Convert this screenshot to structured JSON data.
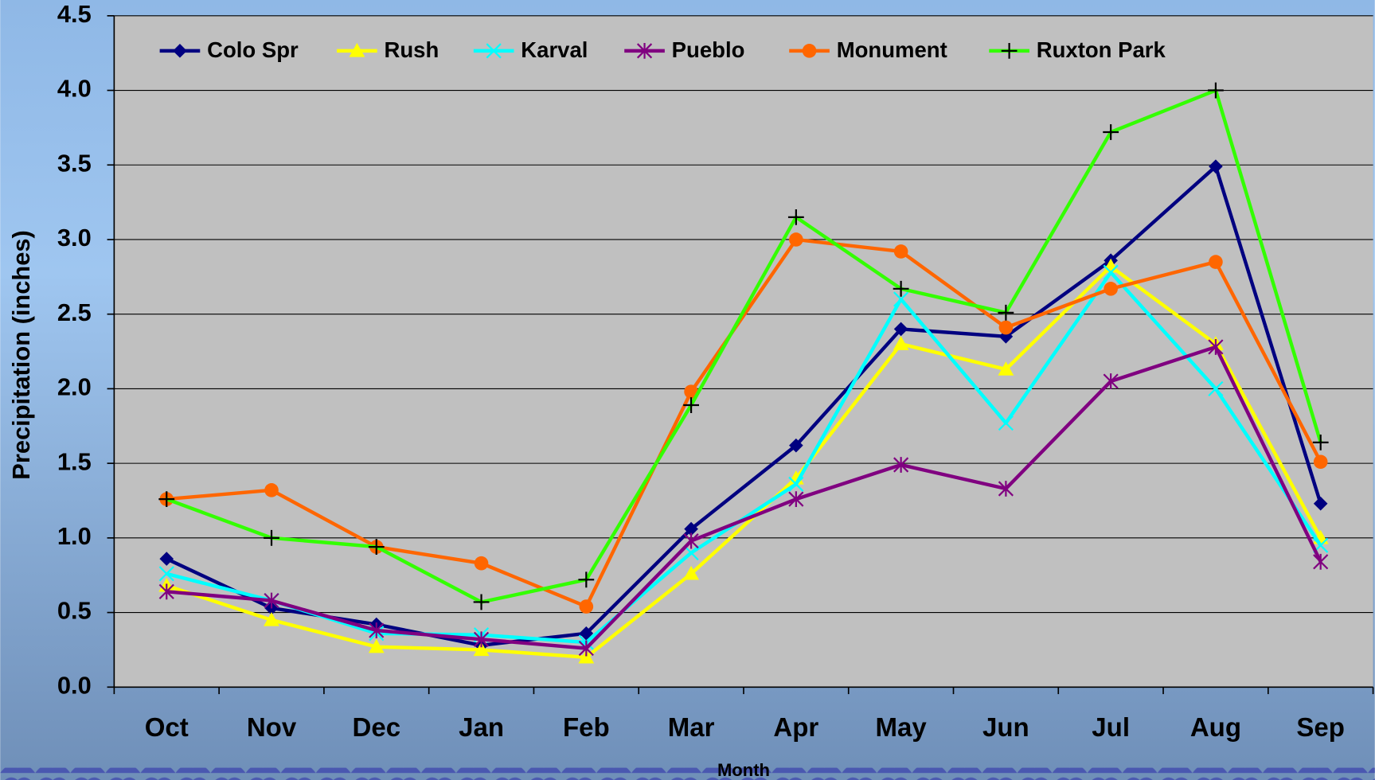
{
  "chart_data": {
    "type": "line",
    "x_label": "Month",
    "y_label": "Precipitation (inches)",
    "categories": [
      "Oct",
      "Nov",
      "Dec",
      "Jan",
      "Feb",
      "Mar",
      "Apr",
      "May",
      "Jun",
      "Jul",
      "Aug",
      "Sep"
    ],
    "ylim": [
      0,
      4.5
    ],
    "yticks": [
      {
        "value": 0,
        "label": "0.0"
      },
      0.5,
      {
        "value": 1,
        "label": "1.0"
      },
      1.5,
      {
        "value": 2,
        "label": "2.0"
      },
      2.5,
      {
        "value": 3,
        "label": "3.0"
      },
      3.5,
      {
        "value": 4,
        "label": "4.0"
      },
      4.5
    ],
    "grid": true,
    "legend": "top",
    "series": [
      {
        "name": "Colo Spr",
        "color": "#000080",
        "marker": "diamond",
        "values": [
          0.86,
          0.53,
          0.42,
          0.28,
          0.36,
          1.06,
          1.62,
          2.4,
          2.35,
          2.86,
          3.49,
          1.23
        ]
      },
      {
        "name": "Rush",
        "color": "#ffff00",
        "marker": "triangle",
        "values": [
          0.68,
          0.45,
          0.27,
          0.25,
          0.2,
          0.76,
          1.4,
          2.3,
          2.13,
          2.82,
          2.3,
          1.0
        ]
      },
      {
        "name": "Karval",
        "color": "#00ffff",
        "marker": "x",
        "values": [
          0.76,
          0.58,
          0.36,
          0.35,
          0.3,
          0.9,
          1.36,
          2.6,
          1.77,
          2.78,
          2.0,
          0.95
        ]
      },
      {
        "name": "Pueblo",
        "color": "#800080",
        "marker": "asterisk",
        "values": [
          0.64,
          0.58,
          0.38,
          0.32,
          0.26,
          0.98,
          1.26,
          1.49,
          1.33,
          2.05,
          2.28,
          0.84
        ]
      },
      {
        "name": "Monument",
        "color": "#ff6600",
        "marker": "circle",
        "values": [
          1.26,
          1.32,
          0.94,
          0.83,
          0.54,
          1.98,
          3.0,
          2.92,
          2.41,
          2.67,
          2.85,
          1.51
        ]
      },
      {
        "name": "Ruxton Park",
        "color": "#33ff00",
        "marker": "plus",
        "values": [
          1.26,
          1.0,
          0.94,
          0.57,
          0.72,
          1.89,
          3.15,
          2.67,
          2.51,
          3.72,
          4.0,
          1.64
        ]
      }
    ]
  }
}
